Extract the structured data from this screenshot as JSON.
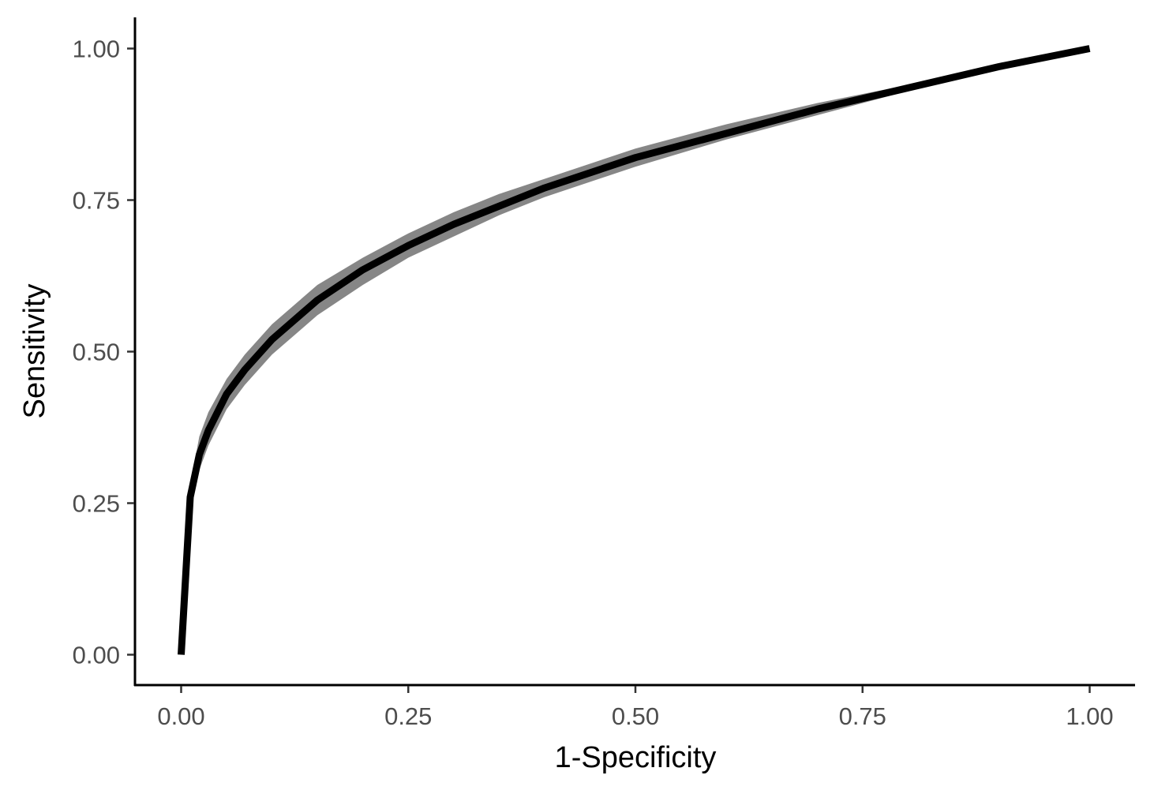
{
  "chart_data": {
    "type": "line",
    "title": "",
    "xlabel": "1-Specificity",
    "ylabel": "Sensitivity",
    "xlim": [
      -0.05,
      1.05
    ],
    "ylim": [
      -0.05,
      1.05
    ],
    "grid": false,
    "legend": "none",
    "x_ticks": [
      0.0,
      0.25,
      0.5,
      0.75,
      1.0
    ],
    "x_tick_labels": [
      "0.00",
      "0.25",
      "0.50",
      "0.75",
      "1.00"
    ],
    "y_ticks": [
      0.0,
      0.25,
      0.5,
      0.75,
      1.0
    ],
    "y_tick_labels": [
      "0.00",
      "0.25",
      "0.50",
      "0.75",
      "1.00"
    ],
    "colors": {
      "line": "#000000",
      "band": "#7f7f7f",
      "tick_text": "#4d4d4d"
    },
    "series": [
      {
        "x": [
          0.0,
          0.01,
          0.02,
          0.03,
          0.05,
          0.07,
          0.1,
          0.15,
          0.2,
          0.25,
          0.3,
          0.35,
          0.4,
          0.5,
          0.6,
          0.7,
          0.8,
          0.9,
          1.0
        ],
        "y": [
          0.0,
          0.26,
          0.33,
          0.37,
          0.43,
          0.47,
          0.52,
          0.585,
          0.635,
          0.675,
          0.71,
          0.74,
          0.77,
          0.82,
          0.86,
          0.9,
          0.935,
          0.97,
          1.0
        ],
        "lower": [
          0.0,
          0.24,
          0.305,
          0.345,
          0.405,
          0.445,
          0.495,
          0.56,
          0.61,
          0.655,
          0.69,
          0.725,
          0.755,
          0.805,
          0.85,
          0.89,
          0.93,
          0.965,
          1.0
        ],
        "upper": [
          0.0,
          0.28,
          0.36,
          0.4,
          0.455,
          0.495,
          0.545,
          0.61,
          0.655,
          0.695,
          0.73,
          0.76,
          0.785,
          0.835,
          0.875,
          0.91,
          0.94,
          0.975,
          1.0
        ]
      }
    ]
  }
}
